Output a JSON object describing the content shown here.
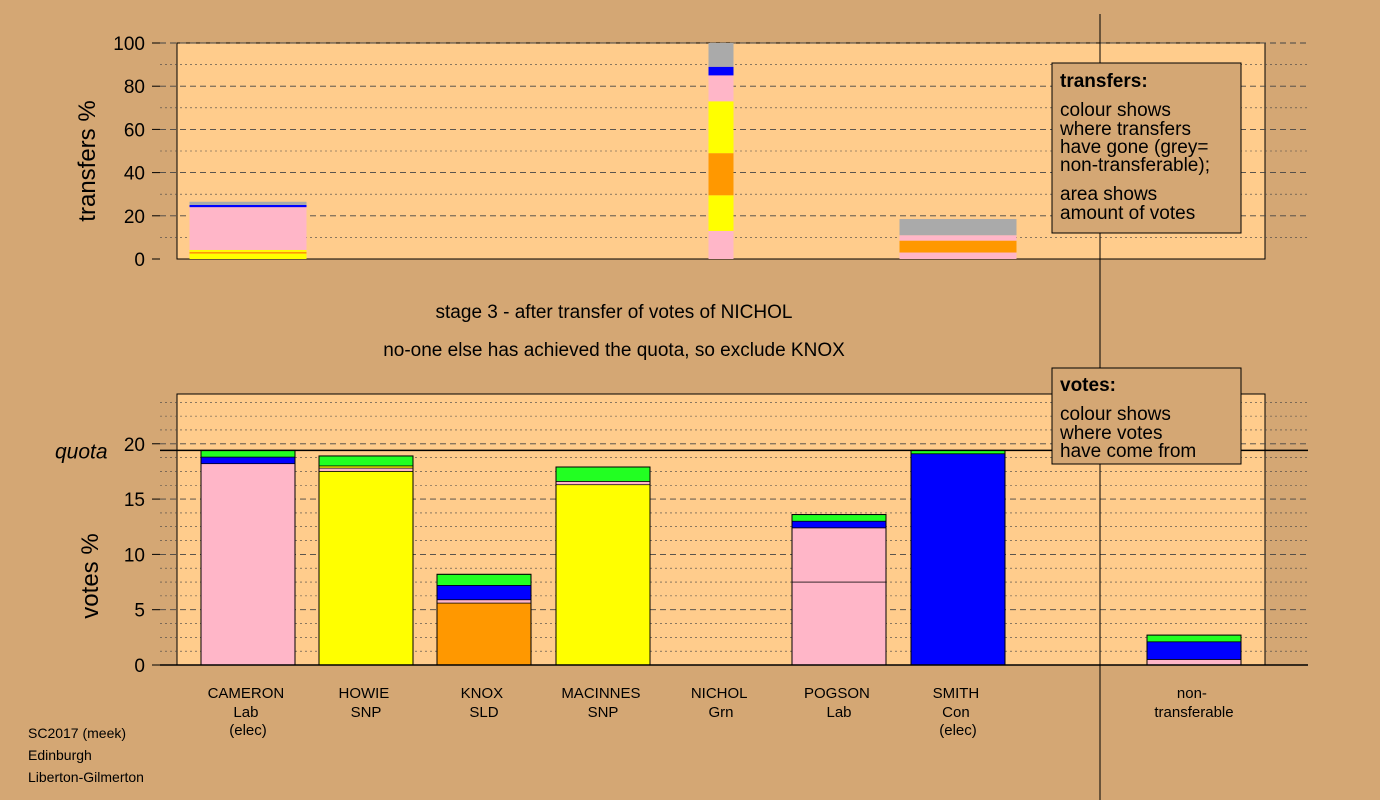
{
  "chart_data": [
    {
      "name": "transfers",
      "type": "stacked-bar",
      "ylabel": "transfers %",
      "ylim": [
        0,
        100
      ],
      "yticks": [
        0,
        20,
        40,
        60,
        80,
        100
      ],
      "categories": [
        "CAMERON",
        "HOWIE",
        "KNOX",
        "MACINNES",
        "NICHOL",
        "POGSON",
        "SMITH",
        "non-transferable"
      ],
      "bars": [
        {
          "category": "CAMERON",
          "segments": [
            {
              "color": "#ffff00",
              "from": 0,
              "to": 2.5
            },
            {
              "color": "#ff9800",
              "from": 2.5,
              "to": 3.3
            },
            {
              "color": "#ffff00",
              "from": 3.3,
              "to": 4.2
            },
            {
              "color": "#ffb6c8",
              "from": 4.2,
              "to": 24.0
            },
            {
              "color": "#0000ff",
              "from": 24.0,
              "to": 25.0
            },
            {
              "color": "#aaaaaa",
              "from": 25.0,
              "to": 26.5
            }
          ]
        },
        {
          "category": "NICHOL",
          "segments": [
            {
              "color": "#ffb6c8",
              "from": 0,
              "to": 13
            },
            {
              "color": "#ffff00",
              "from": 13,
              "to": 29.5
            },
            {
              "color": "#ff9800",
              "from": 29.5,
              "to": 49
            },
            {
              "color": "#ffff00",
              "from": 49,
              "to": 73
            },
            {
              "color": "#ffb6c8",
              "from": 73,
              "to": 85
            },
            {
              "color": "#0000ff",
              "from": 85,
              "to": 89
            },
            {
              "color": "#aaaaaa",
              "from": 89,
              "to": 100
            }
          ]
        },
        {
          "category": "SMITH",
          "segments": [
            {
              "color": "#ffb6c8",
              "from": 0,
              "to": 3
            },
            {
              "color": "#ff9800",
              "from": 3,
              "to": 8.5
            },
            {
              "color": "#ffb6c8",
              "from": 8.5,
              "to": 11
            },
            {
              "color": "#aaaaaa",
              "from": 11,
              "to": 18.5
            }
          ]
        }
      ]
    },
    {
      "name": "votes",
      "type": "stacked-bar",
      "ylabel": "votes %",
      "ylim": [
        0,
        24.5
      ],
      "yticks": [
        0,
        5,
        10,
        15,
        20
      ],
      "quota": 19.4,
      "quota_label": "quota",
      "categories": [
        "CAMERON",
        "HOWIE",
        "KNOX",
        "MACINNES",
        "NICHOL",
        "POGSON",
        "SMITH",
        "non-transferable"
      ],
      "bars": [
        {
          "category": "CAMERON",
          "segments": [
            {
              "color": "#ffb6c8",
              "from": 0,
              "to": 18.2
            },
            {
              "color": "#0000ff",
              "from": 18.2,
              "to": 18.8
            },
            {
              "color": "#22ff22",
              "from": 18.8,
              "to": 19.4
            }
          ]
        },
        {
          "category": "HOWIE",
          "segments": [
            {
              "color": "#ffff00",
              "from": 0,
              "to": 17.5
            },
            {
              "color": "#ffb6c8",
              "from": 17.5,
              "to": 17.8
            },
            {
              "color": "#ffff00",
              "from": 17.8,
              "to": 18.0
            },
            {
              "color": "#22ff22",
              "from": 18.0,
              "to": 18.9
            }
          ]
        },
        {
          "category": "KNOX",
          "segments": [
            {
              "color": "#ff9800",
              "from": 0,
              "to": 5.6
            },
            {
              "color": "#ffb6c8",
              "from": 5.6,
              "to": 5.9
            },
            {
              "color": "#0000ff",
              "from": 5.9,
              "to": 7.2
            },
            {
              "color": "#22ff22",
              "from": 7.2,
              "to": 8.2
            }
          ]
        },
        {
          "category": "MACINNES",
          "segments": [
            {
              "color": "#ffff00",
              "from": 0,
              "to": 16.3
            },
            {
              "color": "#ffb6c8",
              "from": 16.3,
              "to": 16.6
            },
            {
              "color": "#22ff22",
              "from": 16.6,
              "to": 17.9
            }
          ]
        },
        {
          "category": "POGSON",
          "segments": [
            {
              "color": "#ffb6c8",
              "from": 0,
              "to": 7.5
            },
            {
              "color": "#ffb6c8",
              "from": 7.5,
              "to": 12.4
            },
            {
              "color": "#0000ff",
              "from": 12.4,
              "to": 13.0
            },
            {
              "color": "#22ff22",
              "from": 13.0,
              "to": 13.6
            }
          ]
        },
        {
          "category": "SMITH",
          "segments": [
            {
              "color": "#0000ff",
              "from": 0,
              "to": 19.1
            },
            {
              "color": "#22ff22",
              "from": 19.1,
              "to": 19.4
            }
          ]
        },
        {
          "category": "non-transferable",
          "segments": [
            {
              "color": "#ffb6c8",
              "from": 0,
              "to": 0.5
            },
            {
              "color": "#0000ff",
              "from": 0.5,
              "to": 2.1
            },
            {
              "color": "#22ff22",
              "from": 2.1,
              "to": 2.7
            }
          ]
        }
      ]
    }
  ],
  "stage_text": {
    "line1": "stage 3 - after transfer of votes of NICHOL",
    "line2": "no-one else has achieved the quota, so exclude KNOX"
  },
  "candidates": [
    {
      "lines": [
        "CAMERON",
        "Lab",
        "(elec)"
      ]
    },
    {
      "lines": [
        "HOWIE",
        "SNP"
      ]
    },
    {
      "lines": [
        "KNOX",
        "SLD"
      ]
    },
    {
      "lines": [
        "MACINNES",
        "SNP"
      ]
    },
    {
      "lines": [
        "NICHOL",
        "Grn"
      ]
    },
    {
      "lines": [
        "POGSON",
        "Lab"
      ]
    },
    {
      "lines": [
        "SMITH",
        "Con",
        "(elec)"
      ]
    },
    {
      "lines": [
        "non-",
        "transferable"
      ]
    }
  ],
  "legend_transfers": {
    "title": "transfers:",
    "lines": [
      "colour shows",
      "where transfers",
      "have gone (grey=",
      "non-transferable);",
      "area shows",
      "amount of votes"
    ]
  },
  "legend_votes": {
    "title": "votes:",
    "lines": [
      "colour shows",
      "where votes",
      "have come from"
    ]
  },
  "source": {
    "lines": [
      "SC2017 (meek)",
      "Edinburgh",
      "Liberton-Gilmerton"
    ]
  },
  "colors": {
    "background": "#d4a774",
    "plot_bg": "#ffcc8c",
    "legend_bg": "#d4a774"
  }
}
